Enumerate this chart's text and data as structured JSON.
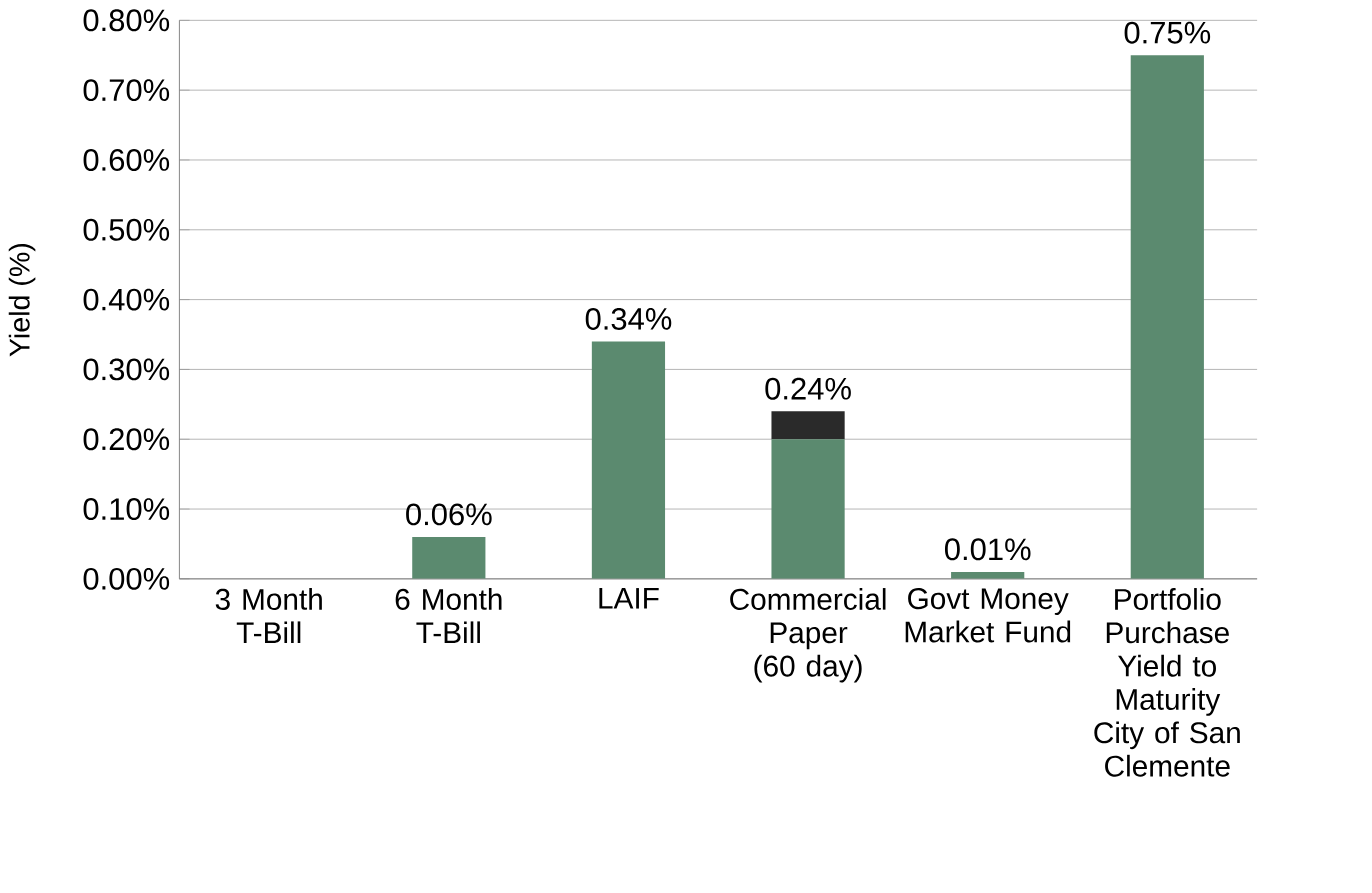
{
  "chart_data": {
    "type": "bar",
    "ylabel": "Yield (%)",
    "categories": [
      "3 Month T-Bill",
      "6 Month T-Bill",
      "LAIF",
      "Commercial Paper (60 day)",
      "Govt Money Market Fund",
      "Portfolio Purchase Yield to Maturity City of San Clemente"
    ],
    "stacked": true,
    "series": [
      {
        "color": "#5b8a6f",
        "values": [
          0,
          0.06,
          0.34,
          0.2,
          0.01,
          0.75
        ]
      },
      {
        "color": "#2a2a2a",
        "values": [
          0,
          0,
          0,
          0.04,
          0,
          0
        ]
      }
    ],
    "totals": [
      null,
      "0.06%",
      "0.34%",
      "0.24%",
      "0.01%",
      "0.75%"
    ],
    "ylim": [
      0,
      0.8
    ],
    "yticks": [
      {
        "value": 0,
        "label": "0.00%"
      },
      {
        "value": 0.1,
        "label": "0.10%"
      },
      {
        "value": 0.2,
        "label": "0.20%"
      },
      {
        "value": 0.3,
        "label": "0.30%"
      },
      {
        "value": 0.4,
        "label": "0.40%"
      },
      {
        "value": 0.5,
        "label": "0.50%"
      },
      {
        "value": 0.6,
        "label": "0.60%"
      },
      {
        "value": 0.7,
        "label": "0.70%"
      },
      {
        "value": 0.8,
        "label": "0.80%"
      }
    ],
    "grid": "y"
  }
}
